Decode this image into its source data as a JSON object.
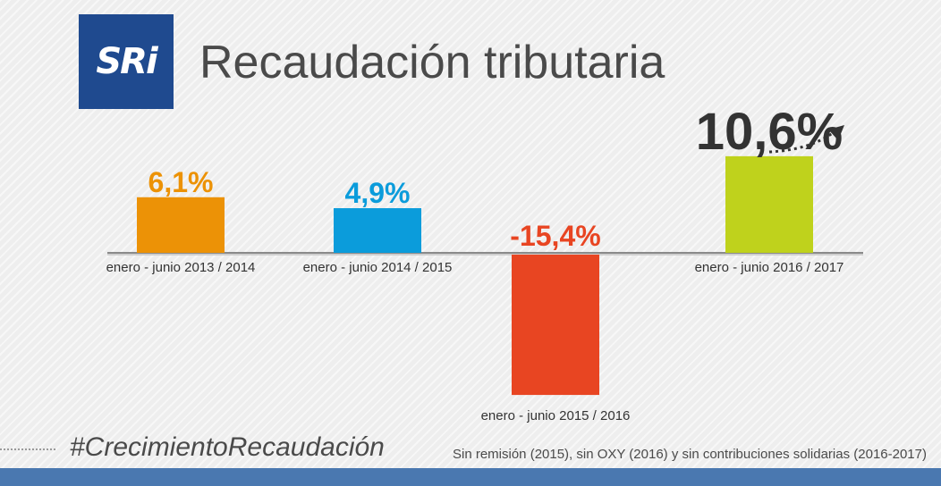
{
  "logo": {
    "text": "SRi",
    "colors": {
      "box": "#1f4a8f",
      "mark": "#e53b2c"
    }
  },
  "title": "Recaudación tributaria",
  "hashtag": "#CrecimientoRecaudación",
  "footnote": "Sin remisión (2015), sin OXY (2016) y sin contribuciones solidarias (2016-2017)",
  "chart_data": {
    "type": "bar",
    "categories": [
      "enero - junio 2013 / 2014",
      "enero - junio 2014 / 2015",
      "enero - junio 2015 / 2016",
      "enero - junio 2016 / 2017"
    ],
    "values": [
      6.1,
      4.9,
      -15.4,
      10.6
    ],
    "value_labels": [
      "6,1%",
      "4,9%",
      "-15,4%",
      "10,6%"
    ],
    "colors": [
      "#ec9206",
      "#0b9cdb",
      "#e84522",
      "#bfd21c"
    ],
    "label_colors": [
      "#ec9206",
      "#0b9cdb",
      "#e84522",
      "#333333"
    ],
    "ylim": [
      -16,
      12
    ],
    "grid": false,
    "legend": "none"
  }
}
